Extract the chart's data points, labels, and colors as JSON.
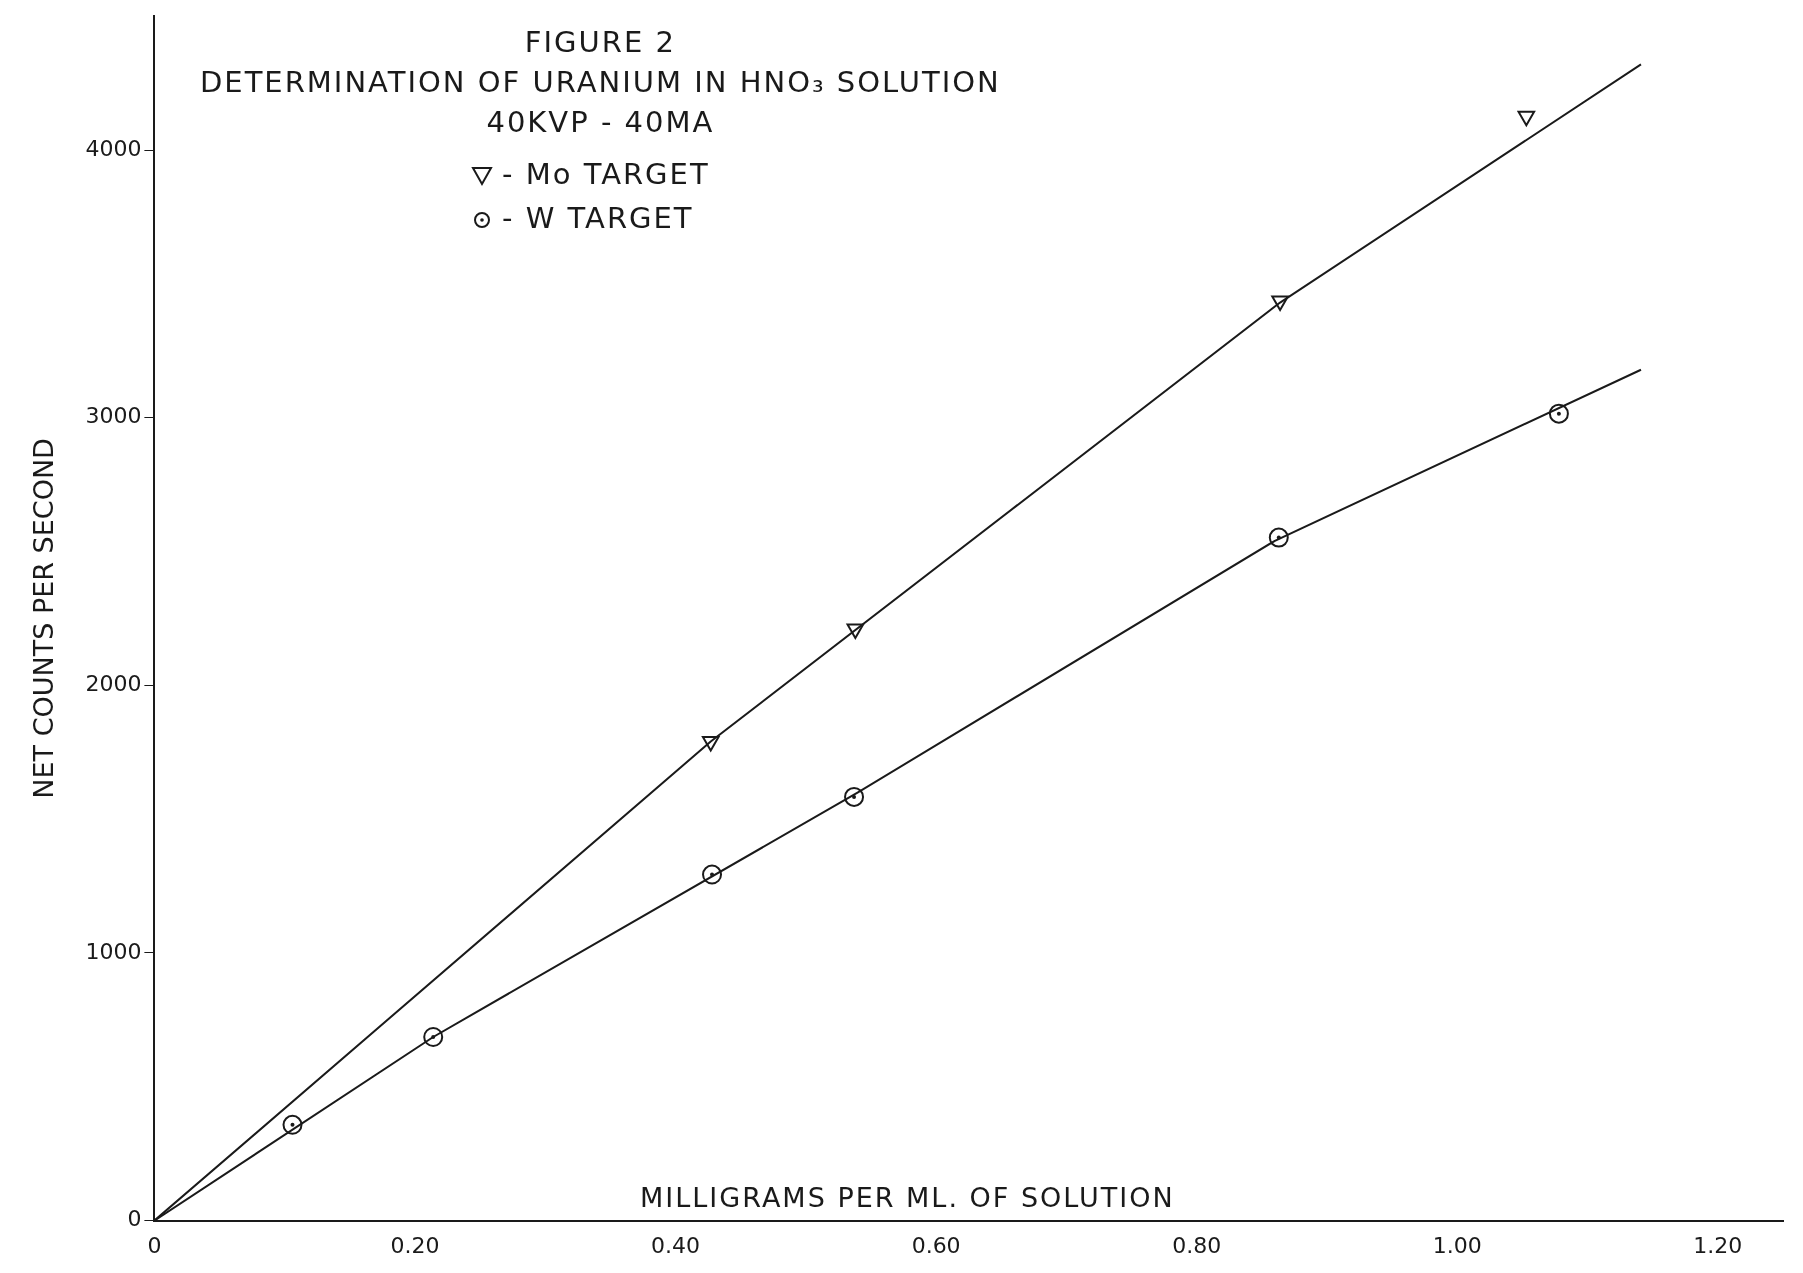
{
  "chart_data": {
    "type": "scatter",
    "title": "FIGURE 2",
    "subtitle": "DETERMINATION OF URANIUM IN HNO₃ SOLUTION\n40KVP - 40MA",
    "xlabel": "MILLIGRAMS PER ML. OF SOLUTION",
    "ylabel": "NET COUNTS PER SECOND",
    "series": [
      {
        "name": "- Mo TARGET",
        "color": "#1a1a1a",
        "marker": "triangle",
        "x": [
          0.427,
          0.538,
          0.864,
          1.053
        ],
        "values": [
          1790,
          2210,
          3436,
          4126
        ]
      },
      {
        "name": "- W TARGET",
        "color": "#1a1a1a",
        "marker": "circle",
        "x": [
          0.106,
          0.214,
          0.428,
          0.537,
          0.863,
          1.078
        ],
        "values": [
          358,
          686,
          1293,
          1583,
          2552,
          3015
        ]
      },
      {
        "type": "line",
        "color": "#1a1a1a",
        "marker": "none",
        "x": [
          0,
          0.427,
          0.864,
          1.141
        ],
        "values": [
          0,
          1790,
          3430,
          4320
        ]
      },
      {
        "type": "line",
        "color": "#1a1a1a",
        "marker": "none",
        "x": [
          0,
          0.214,
          0.54,
          0.86,
          1.141
        ],
        "values": [
          0,
          686,
          1600,
          2540,
          3179
        ]
      }
    ],
    "xlim": [
      0,
      1.25
    ],
    "xticks": [
      0,
      {
        "value": 0.2,
        "label": "0.20"
      },
      {
        "value": 0.4,
        "label": "0.40"
      },
      {
        "value": 0.6,
        "label": "0.60"
      },
      {
        "value": 0.8,
        "label": "0.80"
      },
      {
        "value": 1.0,
        "label": "1.00"
      },
      {
        "value": 1.2,
        "label": "1.20"
      }
    ],
    "ylim": [
      0,
      4500
    ],
    "yticks": [
      0,
      1000,
      2000,
      3000,
      4000
    ],
    "grid": false,
    "legend": "top left"
  }
}
